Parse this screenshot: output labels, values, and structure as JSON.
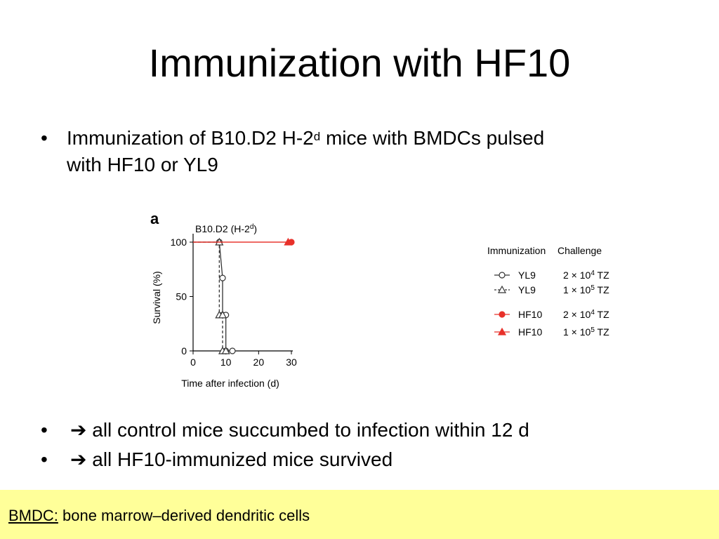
{
  "slide": {
    "title": "Immunization with HF10",
    "bullet_main": {
      "prefix": "Immunization of  B10.D2 H-2",
      "superscript": "d",
      "suffix": " mice with BMDCs pulsed",
      "line2": "with HF10 or YL9"
    },
    "bullets_results": [
      {
        "arrow": "➔",
        "text": " all control mice succumbed to infection within 12 d"
      },
      {
        "arrow": "➔",
        "text": " all HF10-immunized mice survived"
      }
    ],
    "bullet_symbol": "•",
    "footer": {
      "term": "BMDC:",
      "definition": " bone marrow–derived dendritic cells"
    },
    "colors": {
      "footer_bg": "#ffff99",
      "hf10": "#e8312a",
      "yl9": "#333333"
    }
  },
  "chart_data": {
    "type": "line",
    "panel_label": "a",
    "title_prefix": "B10.D2 (H-2",
    "title_sup": "d",
    "title_suffix": ")",
    "xlabel": "Time after infection (d)",
    "ylabel": "Survival (%)",
    "xlim": [
      0,
      30
    ],
    "ylim": [
      0,
      100
    ],
    "xticks": [
      0,
      10,
      20,
      30
    ],
    "yticks": [
      0,
      50,
      100
    ],
    "legend_header": [
      "Immunization",
      "Challenge"
    ],
    "series": [
      {
        "name": "YL9",
        "challenge_prefix": "2 × 10",
        "challenge_exp": "4",
        "challenge_suffix": " TZ",
        "color": "#333333",
        "marker": "circle-open",
        "dash": "none",
        "points": [
          [
            0,
            100
          ],
          [
            8,
            100
          ],
          [
            9,
            67
          ],
          [
            9,
            33
          ],
          [
            10,
            33
          ],
          [
            10,
            0
          ],
          [
            12,
            0
          ]
        ]
      },
      {
        "name": "YL9",
        "challenge_prefix": "1 × 10",
        "challenge_exp": "5",
        "challenge_suffix": " TZ",
        "color": "#333333",
        "marker": "triangle-open",
        "dash": "dashed",
        "points": [
          [
            0,
            100
          ],
          [
            8,
            100
          ],
          [
            8,
            33
          ],
          [
            9,
            33
          ],
          [
            9,
            0
          ],
          [
            10,
            0
          ]
        ]
      },
      {
        "name": "HF10",
        "challenge_prefix": "2 × 10",
        "challenge_exp": "4",
        "challenge_suffix": " TZ",
        "color": "#e8312a",
        "marker": "circle-filled",
        "dash": "none",
        "points": [
          [
            0,
            100
          ],
          [
            30,
            100
          ]
        ]
      },
      {
        "name": "HF10",
        "challenge_prefix": "1 × 10",
        "challenge_exp": "5",
        "challenge_suffix": " TZ",
        "color": "#e8312a",
        "marker": "triangle-filled",
        "dash": "none",
        "points": [
          [
            0,
            100
          ],
          [
            29,
            100
          ]
        ]
      }
    ]
  }
}
